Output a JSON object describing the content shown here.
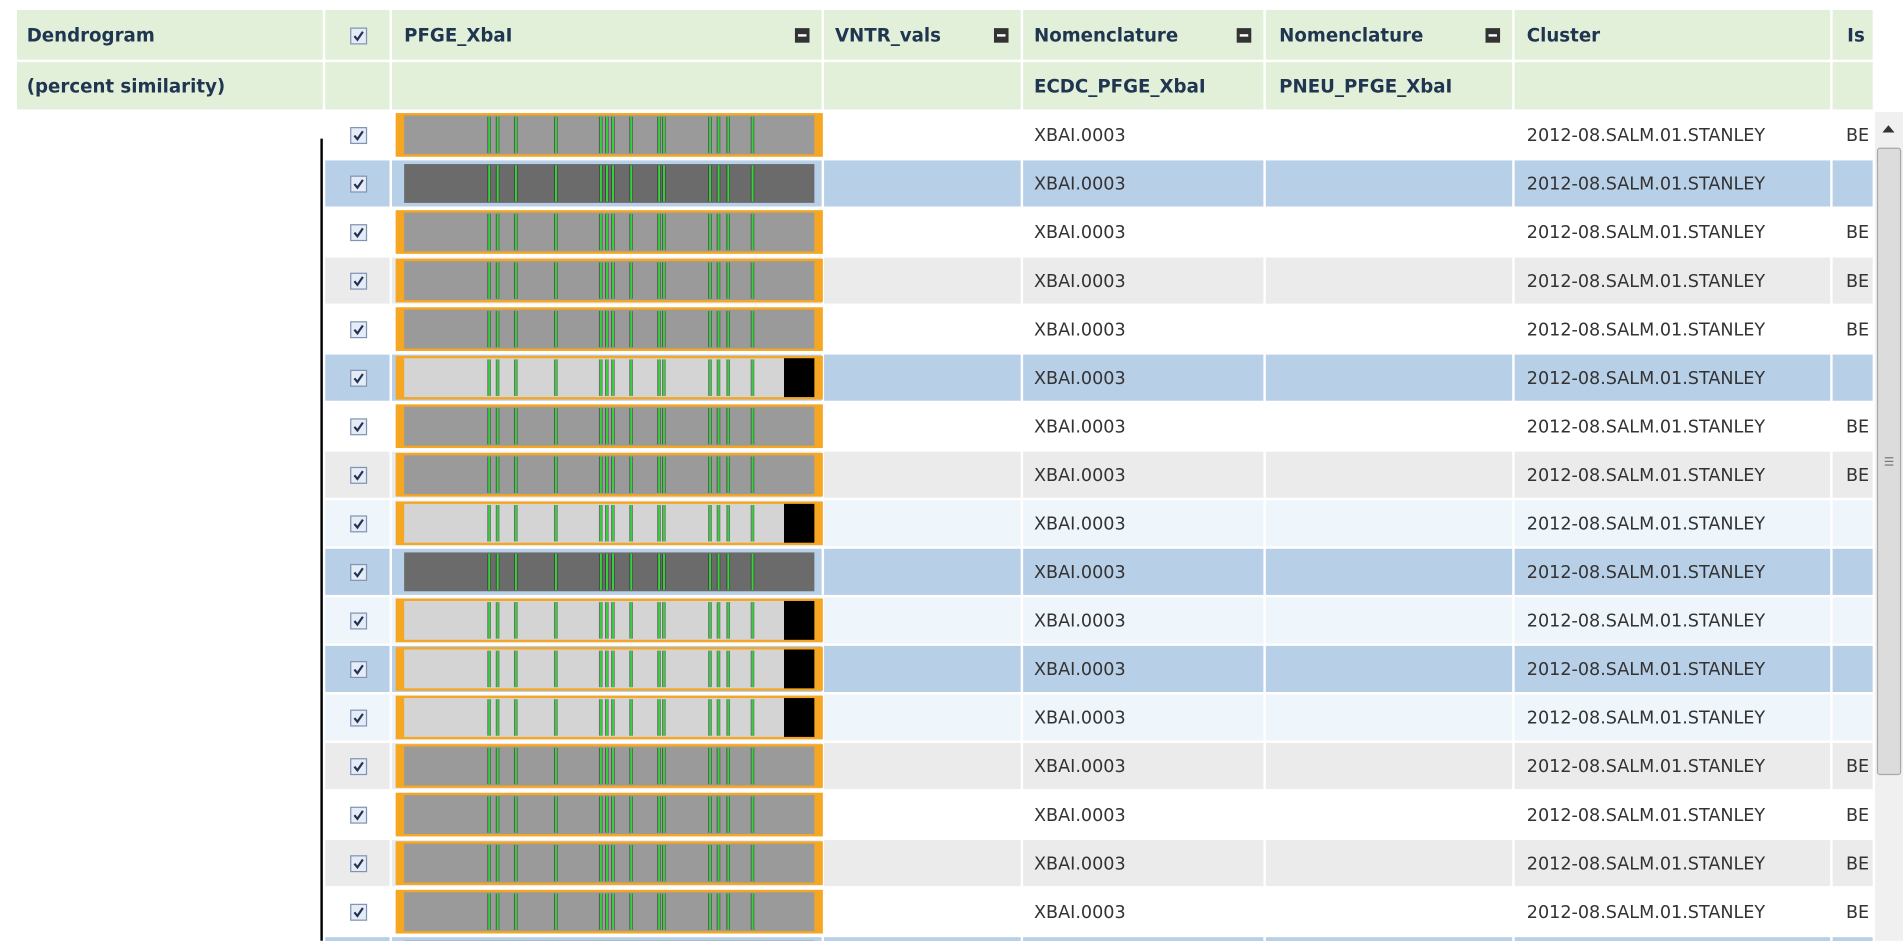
{
  "table": {
    "headers": [
      "Dendrogram",
      "PFGE_XbaI",
      "VNTR_vals",
      "Nomenclature",
      "Nomenclature",
      "Cluster",
      "Is"
    ],
    "subheaders": [
      "(percent similarity)",
      "ECDC_PFGE_XbaI",
      "PNEU_PFGE_XbaI"
    ],
    "rows": [
      {
        "nomenclature": "XBAI.0003",
        "cluster": "2012-08.SALM.01.STANLEY",
        "is": "BE"
      },
      {
        "nomenclature": "XBAI.0003",
        "cluster": "2012-08.SALM.01.STANLEY"
      },
      {
        "nomenclature": "XBAI.0003",
        "cluster": "2012-08.SALM.01.STANLEY",
        "is": "BE"
      },
      {
        "nomenclature": "XBAI.0003",
        "cluster": "2012-08.SALM.01.STANLEY",
        "is": "BE"
      },
      {
        "nomenclature": "XBAI.0003",
        "cluster": "2012-08.SALM.01.STANLEY",
        "is": "BE"
      },
      {
        "nomenclature": "XBAI.0003",
        "cluster": "2012-08.SALM.01.STANLEY"
      },
      {
        "nomenclature": "XBAI.0003",
        "cluster": "2012-08.SALM.01.STANLEY",
        "is": "BE"
      },
      {
        "nomenclature": "XBAI.0003",
        "cluster": "2012-08.SALM.01.STANLEY",
        "is": "BE"
      },
      {
        "nomenclature": "XBAI.0003",
        "cluster": "2012-08.SALM.01.STANLEY"
      },
      {
        "nomenclature": "XBAI.0003",
        "cluster": "2012-08.SALM.01.STANLEY"
      },
      {
        "nomenclature": "XBAI.0003",
        "cluster": "2012-08.SALM.01.STANLEY"
      },
      {
        "nomenclature": "XBAI.0003",
        "cluster": "2012-08.SALM.01.STANLEY"
      },
      {
        "nomenclature": "XBAI.0003",
        "cluster": "2012-08.SALM.01.STANLEY"
      },
      {
        "nomenclature": "XBAI.0003",
        "cluster": "2012-08.SALM.01.STANLEY",
        "is": "BE"
      },
      {
        "nomenclature": "XBAI.0003",
        "cluster": "2012-08.SALM.01.STANLEY",
        "is": "BE"
      },
      {
        "nomenclature": "XBAI.0003",
        "cluster": "2012-08.SALM.01.STANLEY",
        "is": "BE"
      },
      {
        "nomenclature": "XBAI.0003",
        "cluster": "2012-08.SALM.01.STANLEY",
        "is": "BE"
      }
    ]
  }
}
